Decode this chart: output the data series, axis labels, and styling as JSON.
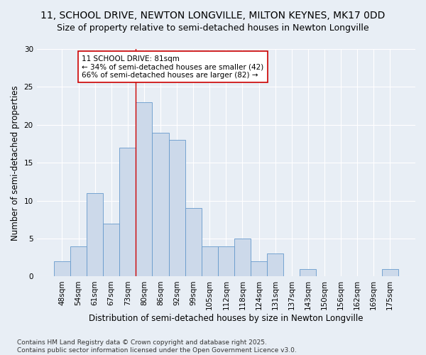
{
  "title_line1": "11, SCHOOL DRIVE, NEWTON LONGVILLE, MILTON KEYNES, MK17 0DD",
  "title_line2": "Size of property relative to semi-detached houses in Newton Longville",
  "xlabel": "Distribution of semi-detached houses by size in Newton Longville",
  "ylabel": "Number of semi-detached properties",
  "categories": [
    "48sqm",
    "54sqm",
    "61sqm",
    "67sqm",
    "73sqm",
    "80sqm",
    "86sqm",
    "92sqm",
    "99sqm",
    "105sqm",
    "112sqm",
    "118sqm",
    "124sqm",
    "131sqm",
    "137sqm",
    "143sqm",
    "150sqm",
    "156sqm",
    "162sqm",
    "169sqm",
    "175sqm"
  ],
  "values": [
    2,
    4,
    11,
    7,
    17,
    23,
    19,
    18,
    9,
    4,
    4,
    5,
    2,
    3,
    0,
    1,
    0,
    0,
    0,
    0,
    1
  ],
  "bar_color": "#ccd9ea",
  "bar_edge_color": "#6699cc",
  "background_color": "#e8eef5",
  "grid_color": "#ffffff",
  "property_bin_index": 5,
  "annotation_text_line1": "11 SCHOOL DRIVE: 81sqm",
  "annotation_text_line2": "← 34% of semi-detached houses are smaller (42)",
  "annotation_text_line3": "66% of semi-detached houses are larger (82) →",
  "annotation_box_color": "#ffffff",
  "annotation_box_edge": "#cc0000",
  "vline_color": "#cc0000",
  "ylim": [
    0,
    30
  ],
  "yticks": [
    0,
    5,
    10,
    15,
    20,
    25,
    30
  ],
  "footer_text": "Contains HM Land Registry data © Crown copyright and database right 2025.\nContains public sector information licensed under the Open Government Licence v3.0.",
  "title_fontsize": 10,
  "subtitle_fontsize": 9,
  "axis_label_fontsize": 8.5,
  "tick_fontsize": 7.5,
  "annotation_fontsize": 7.5,
  "footer_fontsize": 6.5
}
